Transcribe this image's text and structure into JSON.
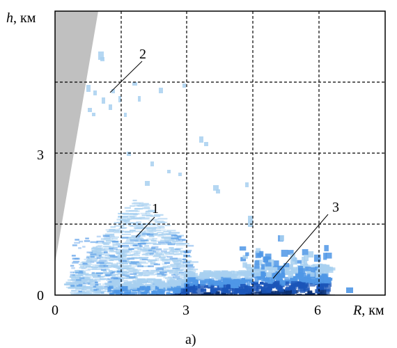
{
  "figure": {
    "y_axis": {
      "var": "h",
      "unit": ", км"
    },
    "x_axis": {
      "var": "R",
      "unit": ", км"
    },
    "x_ticks": [
      "0",
      "3",
      "6"
    ],
    "y_ticks": [
      "0",
      "3"
    ],
    "callouts": [
      "1",
      "2",
      "3"
    ],
    "caption": "а)",
    "colors": {
      "frame": "#000000",
      "grid": "#000000",
      "shadow": "#c0c0c0",
      "echo_light": "#a8d0f0",
      "echo_mid": "#4f97e6",
      "echo_dark": "#1b55b8",
      "echo_darkest": "#0a2f72"
    },
    "layout": "km grid with 1.5 km dashed gridlines; shaded gray wedge in the upper-left corner"
  }
}
